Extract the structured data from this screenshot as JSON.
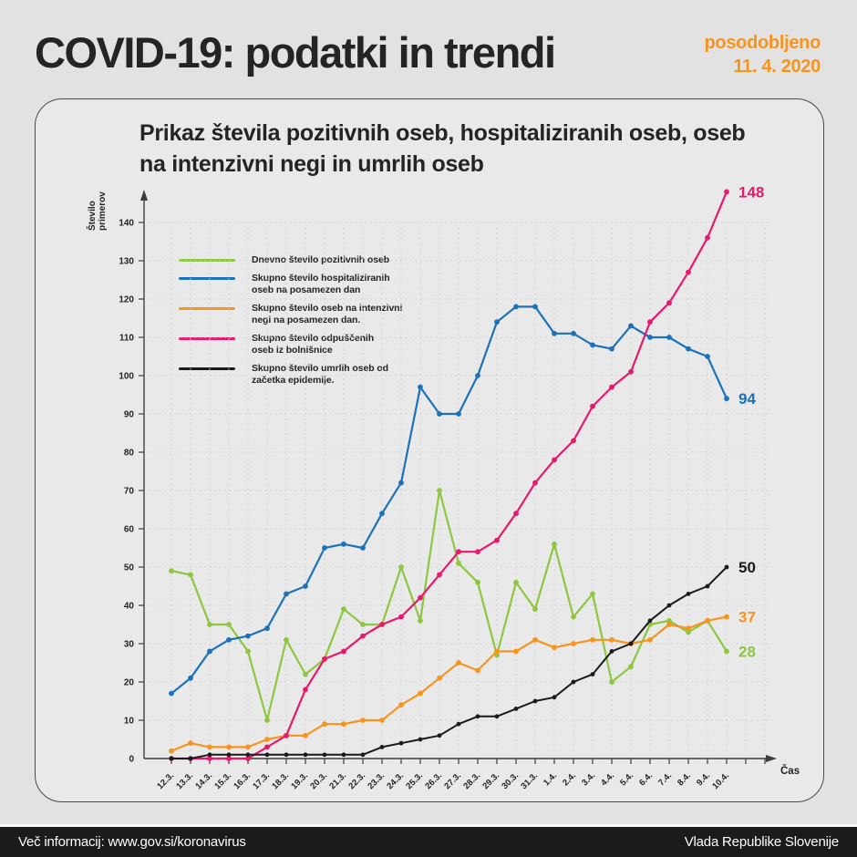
{
  "header": {
    "title": "COVID-19: podatki in trendi",
    "updated_line1": "posodobljeno",
    "updated_line2": "11. 4. 2020"
  },
  "card": {
    "title_line1": "Prikaz števila pozitivnih oseb, hospitaliziranih oseb, oseb",
    "title_line2": "na intenzivni negi in umrlih oseb"
  },
  "chart_data": {
    "type": "line",
    "title": "Prikaz števila pozitivnih oseb, hospitaliziranih oseb, oseb na intenzivni negi in umrlih oseb",
    "xlabel": "Čas",
    "ylabel_lines": [
      "Število",
      "primerov"
    ],
    "ylim": [
      0,
      148
    ],
    "yticks": [
      0,
      10,
      20,
      30,
      40,
      50,
      60,
      70,
      80,
      90,
      100,
      110,
      120,
      130,
      140
    ],
    "grid": true,
    "legend_position": "upper-left-inside",
    "categories": [
      "12.3.",
      "13.3.",
      "14.3.",
      "15.3.",
      "16.3.",
      "17.3.",
      "18.3.",
      "19.3.",
      "20.3.",
      "21.3.",
      "22.3.",
      "23.3.",
      "24.3.",
      "25.3.",
      "26.3.",
      "27.3.",
      "28.3.",
      "29.3.",
      "30.3.",
      "31.3.",
      "1.4.",
      "2.4.",
      "3.4.",
      "4.4.",
      "5.4.",
      "6.4.",
      "7.4.",
      "8.4.",
      "9.4.",
      "10.4."
    ],
    "series": [
      {
        "name": "Dnevno število pozitivnih oseb",
        "legend_lines": [
          "Dnevno število pozitivnih oseb"
        ],
        "color": "#8dc63f",
        "end_label": "28",
        "values": [
          49,
          48,
          35,
          35,
          28,
          10,
          31,
          22,
          26,
          39,
          35,
          35,
          50,
          36,
          70,
          51,
          46,
          27,
          46,
          39,
          56,
          37,
          43,
          20,
          24,
          35,
          36,
          33,
          36,
          28
        ]
      },
      {
        "name": "Skupno število hospitaliziranih oseb na posamezen dan",
        "legend_lines": [
          "Skupno število hospitaliziranih",
          "oseb na posamezen dan"
        ],
        "color": "#1d71b8",
        "end_label": "94",
        "values": [
          17,
          21,
          28,
          31,
          32,
          34,
          43,
          45,
          55,
          56,
          55,
          64,
          72,
          97,
          90,
          90,
          100,
          114,
          118,
          118,
          111,
          111,
          108,
          107,
          113,
          110,
          110,
          107,
          105,
          94
        ]
      },
      {
        "name": "Skupno število oseb na intenzivni negi na posamezen dan.",
        "legend_lines": [
          "Skupno število oseb na intenzivni",
          "negi na posamezen dan."
        ],
        "color": "#f7941e",
        "end_label": "37",
        "values": [
          2,
          4,
          3,
          3,
          3,
          5,
          6,
          6,
          9,
          9,
          10,
          10,
          14,
          17,
          21,
          25,
          23,
          28,
          28,
          31,
          29,
          30,
          31,
          31,
          30,
          31,
          35,
          34,
          36,
          37
        ]
      },
      {
        "name": "Skupno število odpuščenih oseb iz bolnišnice",
        "legend_lines": [
          "Skupno število odpuščenih",
          "oseb iz bolnišnice"
        ],
        "color": "#e8186d",
        "end_label": "148",
        "values": [
          0,
          0,
          0,
          0,
          0,
          3,
          6,
          18,
          26,
          28,
          32,
          35,
          37,
          42,
          48,
          54,
          54,
          57,
          64,
          72,
          78,
          83,
          92,
          97,
          101,
          114,
          119,
          127,
          136,
          148
        ]
      },
      {
        "name": "Skupno število umrlih oseb od začetka epidemije.",
        "legend_lines": [
          "Skupno število umrlih oseb od",
          "začetka epidemije."
        ],
        "color": "#1a1a1a",
        "end_label": "50",
        "values": [
          0,
          0,
          1,
          1,
          1,
          1,
          1,
          1,
          1,
          1,
          1,
          3,
          4,
          5,
          6,
          9,
          11,
          11,
          13,
          15,
          16,
          20,
          22,
          28,
          30,
          36,
          40,
          43,
          45,
          50
        ]
      }
    ],
    "colors": {
      "accent_orange": "#f7941e",
      "grid": "#cdcdcd",
      "axis": "#3c3c3c",
      "text": "#262324",
      "footer_bg": "#1b1b1b",
      "card_border": "#4a4a4a"
    }
  },
  "footer": {
    "left": "Več informacij: www.gov.si/koronavirus",
    "right": "Vlada Republike Slovenije"
  }
}
